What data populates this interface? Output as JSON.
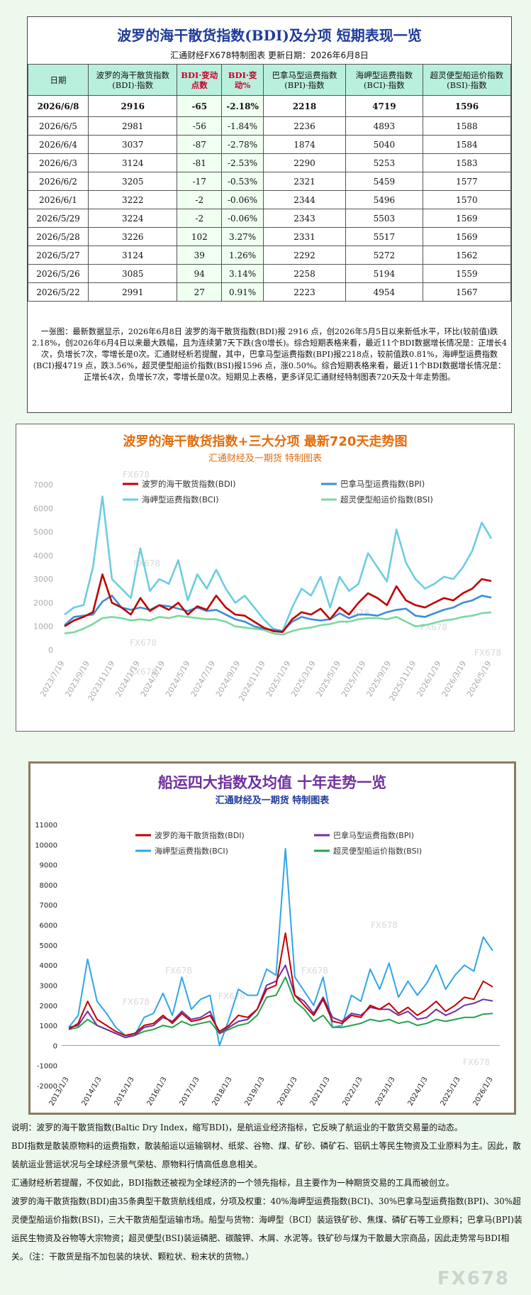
{
  "header": {
    "title": "波罗的海干散货指数(BDI)及分项 短期表现一览",
    "subtitle": "汇通财经FX678特制图表      更新日期：2026年6月8日"
  },
  "table": {
    "columns": [
      "日期",
      "波罗的海干散货指数(BDI)·指数",
      "BDI·变动点数",
      "BDI·变动%",
      "巴拿马型运费指数(BPI)·指数",
      "海岬型运费指数(BCI)·指数",
      "超灵便型船运价指数(BSI)·指数"
    ],
    "rows": [
      [
        "2026/6/8",
        "2916",
        "-65",
        "-2.18%",
        "2218",
        "4719",
        "1596"
      ],
      [
        "2026/6/5",
        "2981",
        "-56",
        "-1.84%",
        "2236",
        "4893",
        "1588"
      ],
      [
        "2026/6/4",
        "3037",
        "-87",
        "-2.78%",
        "1874",
        "5040",
        "1584"
      ],
      [
        "2026/6/3",
        "3124",
        "-81",
        "-2.53%",
        "2290",
        "5253",
        "1583"
      ],
      [
        "2026/6/2",
        "3205",
        "-17",
        "-0.53%",
        "2321",
        "5459",
        "1577"
      ],
      [
        "2026/6/1",
        "3222",
        "-2",
        "-0.06%",
        "2344",
        "5496",
        "1570"
      ],
      [
        "2026/5/29",
        "3224",
        "-2",
        "-0.06%",
        "2343",
        "5503",
        "1569"
      ],
      [
        "2026/5/28",
        "3226",
        "102",
        "3.27%",
        "2331",
        "5517",
        "1569"
      ],
      [
        "2026/5/27",
        "3124",
        "39",
        "1.26%",
        "2292",
        "5272",
        "1562"
      ],
      [
        "2026/5/26",
        "3085",
        "94",
        "3.14%",
        "2258",
        "5194",
        "1559"
      ],
      [
        "2026/5/22",
        "2991",
        "27",
        "0.91%",
        "2223",
        "4954",
        "1567"
      ]
    ],
    "summary": "一张图：最新数据显示，2026年6月8日 波罗的海干散货指数(BDI)报 2916 点，创2026年5月5日以来新低水平，环比(较前值)跌2.18%，创2026年6月4日以来最大跌幅，且为连续第7天下跌(含0增长)。综合短期表格来看，最近11个BDI数据增长情况是：正增长4次，负增长7次，零增长是0次。汇通财经析若提醒，其中，巴拿马型运费指数(BPI)报2218点，较前值跌0.81%，海岬型运费指数(BCI)报4719 点，跌3.56%，超灵便型船运价指数(BSI)报1596 点，涨0.50%。综合短期表格来看，最近11个BDI数据增长情况是：正增长4次，负增长7次，零增长是0次。短期见上表格，更多详见汇通财经特制图表720天及十年走势图。"
  },
  "colors": {
    "bdi": "#c00000",
    "bpi": "#3a8fd9",
    "bci": "#6ccde0",
    "bsi": "#7bd8a0",
    "bpi_10y": "#7030a0",
    "bci_10y": "#2ea6e6",
    "bsi_10y": "#22a34a"
  },
  "chart_data": [
    {
      "type": "line",
      "title": "波罗的海干散货指数+三大分项 最新720天走势图",
      "subtitle": "汇通财经及一期货 特制图表",
      "watermark": "FX678",
      "xlabels": [
        "2023/7/19",
        "2023/9/19",
        "2023/11/19",
        "2024/1/19",
        "2024/3/19",
        "2024/5/19",
        "2024/7/19",
        "2024/9/19",
        "2024/11/19",
        "2025/1/19",
        "2025/3/19",
        "2025/5/19",
        "2025/7/19",
        "2025/9/19",
        "2025/11/19",
        "2026/1/19",
        "2026/3/19",
        "2026/5/19"
      ],
      "ylim": [
        0,
        7000
      ],
      "yticks": [
        0,
        1000,
        2000,
        3000,
        4000,
        5000,
        6000,
        7000
      ],
      "legend": "top",
      "series": [
        {
          "name": "波罗的海干散货指数(BDI)",
          "key": "bdi",
          "values": [
            1000,
            1250,
            1400,
            1600,
            3200,
            2000,
            1800,
            1500,
            2200,
            1650,
            1900,
            1700,
            2000,
            1500,
            1850,
            1700,
            2300,
            1800,
            1500,
            1450,
            1200,
            950,
            800,
            760,
            1300,
            1600,
            1500,
            1750,
            1300,
            1800,
            1500,
            2000,
            2400,
            2200,
            1900,
            2700,
            2100,
            1900,
            1800,
            2000,
            2200,
            2100,
            2400,
            2600,
            3000,
            2916
          ]
        },
        {
          "name": "巴拿马型运费指数(BPI)",
          "key": "bpi",
          "values": [
            1050,
            1400,
            1450,
            1500,
            2050,
            2300,
            1800,
            1700,
            1800,
            1700,
            1900,
            1850,
            1750,
            1650,
            1800,
            1650,
            1700,
            1500,
            1300,
            1200,
            1000,
            900,
            850,
            800,
            1200,
            1400,
            1300,
            1250,
            1300,
            1550,
            1350,
            1500,
            1500,
            1450,
            1600,
            1700,
            1750,
            1450,
            1400,
            1550,
            1700,
            1800,
            2000,
            2100,
            2300,
            2218
          ]
        },
        {
          "name": "海岬型运费指数(BCI)",
          "key": "bci",
          "values": [
            1500,
            1800,
            1900,
            3500,
            6500,
            3000,
            2600,
            2200,
            4300,
            2500,
            3000,
            2800,
            3800,
            2100,
            3200,
            2600,
            3400,
            2600,
            2000,
            2300,
            1800,
            1300,
            900,
            800,
            1800,
            2600,
            2300,
            3100,
            1800,
            3100,
            2500,
            2800,
            4100,
            3500,
            2900,
            5100,
            3700,
            3000,
            2600,
            2800,
            3100,
            3000,
            3500,
            4200,
            5400,
            4719
          ]
        },
        {
          "name": "超灵便型船运价指数(BSI)",
          "key": "bsi",
          "values": [
            700,
            750,
            900,
            1100,
            1350,
            1400,
            1350,
            1250,
            1300,
            1250,
            1400,
            1350,
            1450,
            1400,
            1350,
            1300,
            1300,
            1200,
            1000,
            950,
            900,
            850,
            700,
            650,
            800,
            900,
            950,
            1050,
            1100,
            1200,
            1200,
            1300,
            1350,
            1350,
            1300,
            1400,
            1200,
            1000,
            1050,
            1150,
            1250,
            1300,
            1400,
            1450,
            1560,
            1596
          ]
        }
      ]
    },
    {
      "type": "line",
      "title": "船运四大指数及均值 十年走势一览",
      "subtitle": "汇通财经及一期货 特制图表",
      "watermark": "FX678",
      "xlabels": [
        "2013/1/3",
        "2014/1/3",
        "2015/1/3",
        "2016/1/3",
        "2017/1/3",
        "2018/1/3",
        "2019/1/3",
        "2020/1/3",
        "2021/1/3",
        "2022/1/3",
        "2023/1/3",
        "2024/1/3",
        "2025/1/3",
        "2026/1/3"
      ],
      "ylim": [
        -2000,
        11000
      ],
      "yticks": [
        -2000,
        -1000,
        0,
        1000,
        2000,
        3000,
        4000,
        5000,
        6000,
        7000,
        8000,
        9000,
        10000,
        11000
      ],
      "legend": "top",
      "series": [
        {
          "name": "波罗的海干散货指数(BDI)",
          "key": "bdi",
          "values": [
            800,
            1100,
            2200,
            1300,
            1000,
            700,
            500,
            600,
            1000,
            1100,
            1500,
            1100,
            1600,
            1200,
            1300,
            1500,
            700,
            1000,
            1500,
            1400,
            1800,
            2800,
            3000,
            5600,
            2500,
            2000,
            1500,
            2300,
            1200,
            1100,
            1500,
            1400,
            2000,
            1800,
            2100,
            1600,
            1900,
            1500,
            1800,
            2200,
            1700,
            2000,
            2400,
            2300,
            3200,
            2916
          ]
        },
        {
          "name": "巴拿马型运费指数(BPI)",
          "key": "bpi",
          "values": [
            900,
            1000,
            1700,
            1000,
            800,
            600,
            400,
            500,
            900,
            1000,
            1400,
            1200,
            1700,
            1300,
            1400,
            1700,
            600,
            900,
            1200,
            1300,
            1800,
            3000,
            3200,
            4000,
            2500,
            2200,
            1600,
            2400,
            1400,
            1200,
            1600,
            1500,
            1900,
            1800,
            1800,
            1500,
            1700,
            1300,
            1400,
            1800,
            1500,
            1700,
            2000,
            2100,
            2300,
            2218
          ]
        },
        {
          "name": "海岬型运费指数(BCI)",
          "key": "bci",
          "values": [
            900,
            1500,
            4300,
            2200,
            1600,
            900,
            500,
            500,
            1400,
            1600,
            2600,
            1500,
            3400,
            1800,
            2300,
            2500,
            0,
            1300,
            2800,
            2500,
            2500,
            3800,
            3500,
            9800,
            3400,
            2700,
            2000,
            3400,
            900,
            1000,
            2500,
            2200,
            3800,
            2800,
            4100,
            2400,
            3200,
            2500,
            3100,
            4000,
            2800,
            3500,
            4000,
            3700,
            5400,
            4719
          ]
        },
        {
          "name": "超灵便型船运价指数(BSI)",
          "key": "bsi",
          "values": [
            800,
            900,
            1300,
            1000,
            800,
            600,
            400,
            500,
            700,
            800,
            1000,
            900,
            1200,
            1000,
            1100,
            1200,
            600,
            800,
            1000,
            1100,
            1500,
            2400,
            2500,
            3400,
            2200,
            1800,
            1200,
            1500,
            900,
            900,
            1000,
            1100,
            1300,
            1200,
            1300,
            1100,
            1200,
            1000,
            1100,
            1300,
            1200,
            1300,
            1400,
            1400,
            1560,
            1596
          ]
        }
      ]
    }
  ],
  "notes": [
    "说明：波罗的海干散货指数(Baltic Dry Index，缩写BDI)，是航运业经济指标，它反映了航运业的干散货交易量的动态。",
    "BDI指数是散装原物料的运费指数，散装船运以运输钢材、纸浆、谷物、煤、矿砂、磷矿石、铝矾土等民生物资及工业原料为主。因此，散装航运业营运状况与全球经济景气荣枯、原物料行情高低息息相关。",
    "汇通财经析若提醒，不仅如此，BDI指数还被视为全球经济的一个领先指标，且主要作为一种期货交易的工具而被创立。",
    "波罗的海干散货指数(BDI)由35条典型干散货航线组成，分项及权重：40%海岬型运费指数(BCI)、30%巴拿马型运费指数(BPI)、30%超灵便型船运价指数(BSI)，三大干散货船型运输市场。船型与货物：海岬型（BCI）装运铁矿砂、焦煤、磷矿石等工业原料；巴拿马(BPI)装运民生物资及谷物等大宗物资；超灵便型(BSI)装运磷肥、碳酸钾、木屑、水泥等。铁矿砂与煤为干散最大宗商品，因此走势常与BDI相关。（注：干散货是指不加包装的块状、颗粒状、粉末状的货物。）"
  ],
  "brand": "FX678"
}
